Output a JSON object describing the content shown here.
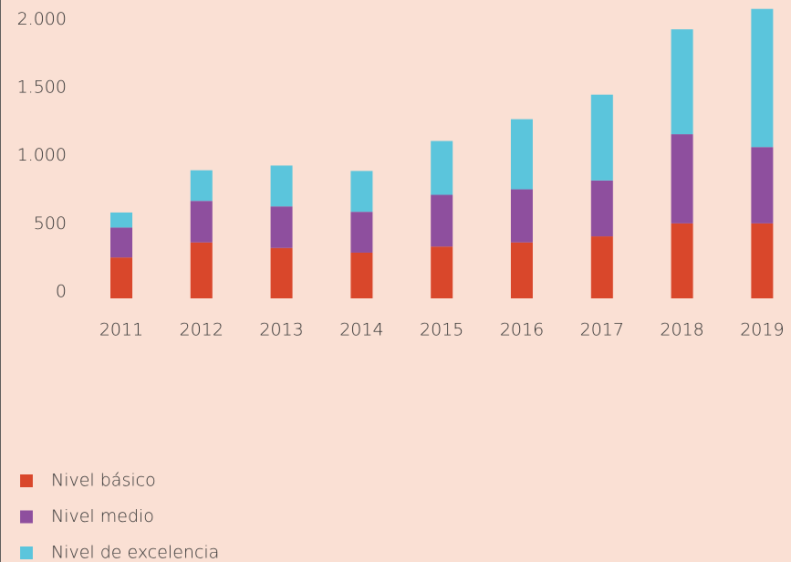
{
  "chart_data": {
    "type": "stacked_bar",
    "categories": [
      "2011",
      "2012",
      "2013",
      "2014",
      "2015",
      "2016",
      "2017",
      "2018",
      "2019"
    ],
    "series": [
      {
        "name": "Nivel básico",
        "color": "#d9472b",
        "values": [
          300,
          410,
          370,
          335,
          380,
          410,
          455,
          550,
          550
        ]
      },
      {
        "name": "Nivel medio",
        "color": "#8e4f9e",
        "values": [
          220,
          305,
          305,
          300,
          380,
          390,
          410,
          655,
          560
        ]
      },
      {
        "name": "Nivel de excelencia",
        "color": "#5bc5dc",
        "values": [
          110,
          225,
          300,
          300,
          395,
          515,
          630,
          770,
          1015
        ]
      }
    ],
    "ylim": [
      0,
      2190
    ],
    "yticks": [
      0,
      500,
      {
        "value": 1000,
        "label": "1.000"
      },
      {
        "value": 1500,
        "label": "1.500"
      },
      {
        "value": 2000,
        "label": "2.000"
      }
    ],
    "grid": false,
    "legend": "bottom-left"
  }
}
